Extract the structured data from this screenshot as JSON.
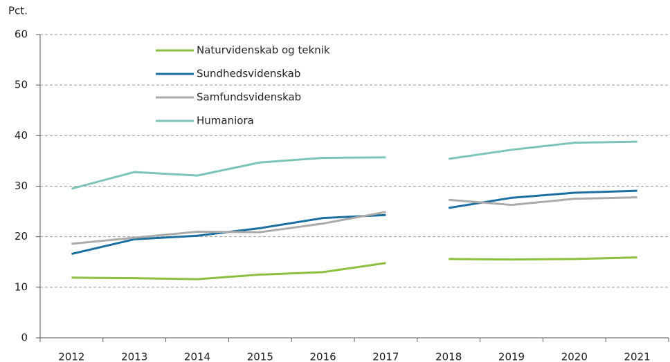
{
  "chart_data": {
    "type": "line",
    "y_axis_label": "Pct.",
    "categories": [
      "2012",
      "2013",
      "2014",
      "2015",
      "2016",
      "2017",
      "2018",
      "2019",
      "2020",
      "2021"
    ],
    "line_break_after": "2017",
    "series": [
      {
        "name": "Naturvidenskab og teknik",
        "color": "#8cbf3f",
        "values": [
          11.9,
          11.8,
          11.6,
          12.5,
          13.0,
          14.8,
          15.6,
          15.5,
          15.6,
          15.9
        ]
      },
      {
        "name": "Sundhedsvidenskab",
        "color": "#1a6fa0",
        "values": [
          16.6,
          19.5,
          20.2,
          21.7,
          23.7,
          24.3,
          25.7,
          27.7,
          28.7,
          29.1
        ]
      },
      {
        "name": "Samfundsvidenskab",
        "color": "#aaaaaa",
        "values": [
          18.6,
          19.8,
          21.0,
          20.9,
          22.6,
          24.9,
          27.3,
          26.3,
          27.5,
          27.8
        ]
      },
      {
        "name": "Humaniora",
        "color": "#7cc4b8",
        "values": [
          29.5,
          32.8,
          32.1,
          34.7,
          35.6,
          35.7,
          35.4,
          37.2,
          38.6,
          38.8
        ]
      }
    ],
    "ylim": [
      0,
      60
    ],
    "yticks": [
      0,
      10,
      20,
      30,
      40,
      50,
      60
    ],
    "grid": true
  }
}
